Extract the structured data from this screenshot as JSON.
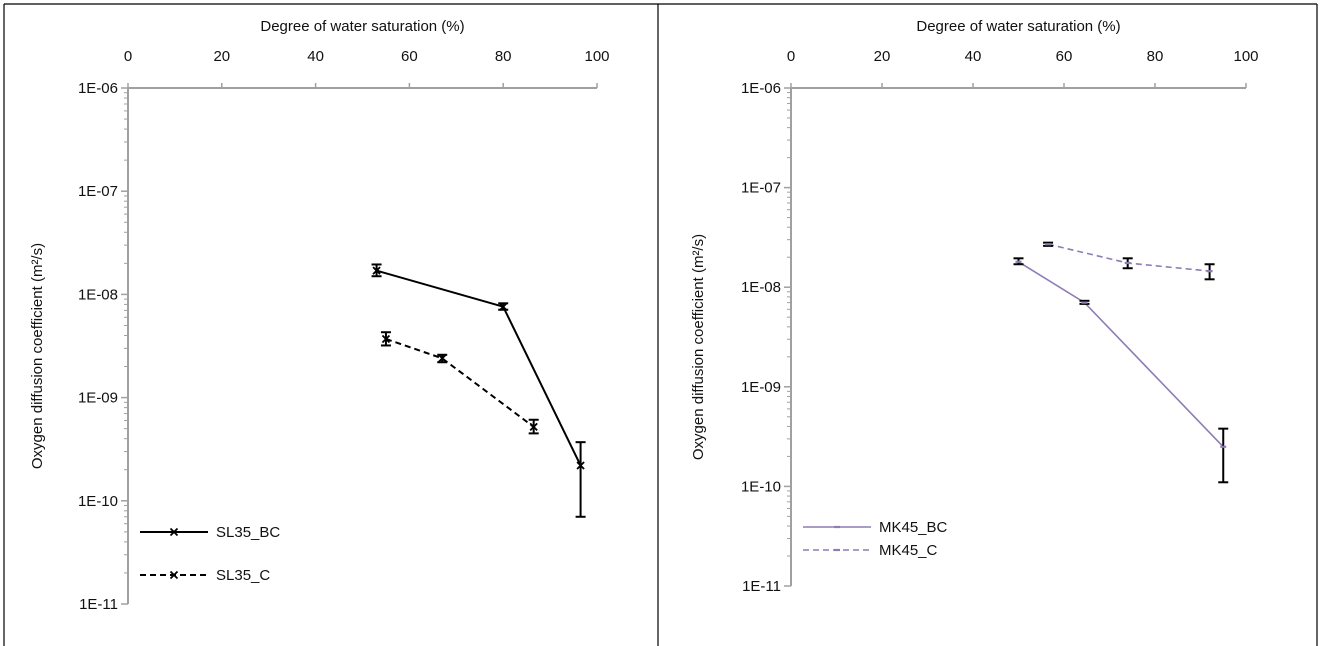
{
  "chart_data": [
    {
      "type": "line",
      "title": "",
      "xlabel": "Degree of water saturation (%)",
      "ylabel": "Oxygen diffusion coefficient (m²/s)",
      "xlim": [
        0,
        100
      ],
      "ylim": [
        1e-11,
        1e-06
      ],
      "yscale": "log",
      "x_ticks": [
        0,
        20,
        40,
        60,
        80,
        100
      ],
      "x_tick_labels": [
        "0",
        "20",
        "40",
        "60",
        "80",
        "100"
      ],
      "y_ticks": [
        1e-06,
        1e-07,
        1e-08,
        1e-09,
        1e-10,
        1e-11
      ],
      "y_tick_labels": [
        "1E-06",
        "1E-07",
        "1E-08",
        "1E-09",
        "1E-10",
        "1E-11"
      ],
      "x_axis_position": "top",
      "grid": false,
      "legend_position": "bottom-left",
      "series": [
        {
          "name": "SL35_BC",
          "style": "solid",
          "color": "#000000",
          "marker": "x",
          "points": [
            {
              "x": 53,
              "y": 1.7e-08,
              "err_low": 1.5e-08,
              "err_high": 1.95e-08
            },
            {
              "x": 80,
              "y": 7.6e-09,
              "err_low": 7.1e-09,
              "err_high": 8.2e-09
            },
            {
              "x": 96.5,
              "y": 2.2e-10,
              "err_low": 7e-11,
              "err_high": 3.7e-10
            }
          ]
        },
        {
          "name": "SL35_C",
          "style": "dashed",
          "color": "#000000",
          "marker": "x",
          "points": [
            {
              "x": 55,
              "y": 3.7e-09,
              "err_low": 3.2e-09,
              "err_high": 4.3e-09
            },
            {
              "x": 67,
              "y": 2.4e-09,
              "err_low": 2.2e-09,
              "err_high": 2.6e-09
            },
            {
              "x": 86.5,
              "y": 5.2e-10,
              "err_low": 4.5e-10,
              "err_high": 6.1e-10
            }
          ]
        }
      ]
    },
    {
      "type": "line",
      "title": "",
      "xlabel": "Degree of water saturation (%)",
      "ylabel": "Oxygen diffusion coefficient (m²/s)",
      "xlim": [
        0,
        100
      ],
      "ylim": [
        1e-11,
        1e-06
      ],
      "yscale": "log",
      "x_ticks": [
        0,
        20,
        40,
        60,
        80,
        100
      ],
      "x_tick_labels": [
        "0",
        "20",
        "40",
        "60",
        "80",
        "100"
      ],
      "y_ticks": [
        1e-06,
        1e-07,
        1e-08,
        1e-09,
        1e-10,
        1e-11
      ],
      "y_tick_labels": [
        "1E-06",
        "1E-07",
        "1E-08",
        "1E-09",
        "1E-10",
        "1E-11"
      ],
      "x_axis_position": "top",
      "grid": false,
      "legend_position": "bottom-left",
      "series": [
        {
          "name": "MK45_BC",
          "style": "solid",
          "color": "#8e7cb4",
          "marker": "dash",
          "points": [
            {
              "x": 50,
              "y": 1.8e-08,
              "err_low": 1.7e-08,
              "err_high": 1.95e-08
            },
            {
              "x": 64.5,
              "y": 7e-09,
              "err_low": 6.8e-09,
              "err_high": 7.3e-09
            },
            {
              "x": 95,
              "y": 2.5e-10,
              "err_low": 1.1e-10,
              "err_high": 3.8e-10
            }
          ]
        },
        {
          "name": "MK45_C",
          "style": "dashed",
          "color": "#8e7cb4",
          "marker": "dash",
          "points": [
            {
              "x": 56.5,
              "y": 2.7e-08,
              "err_low": 2.6e-08,
              "err_high": 2.8e-08
            },
            {
              "x": 74,
              "y": 1.75e-08,
              "err_low": 1.55e-08,
              "err_high": 1.95e-08
            },
            {
              "x": 92,
              "y": 1.45e-08,
              "err_low": 1.2e-08,
              "err_high": 1.7e-08
            }
          ]
        }
      ]
    }
  ]
}
